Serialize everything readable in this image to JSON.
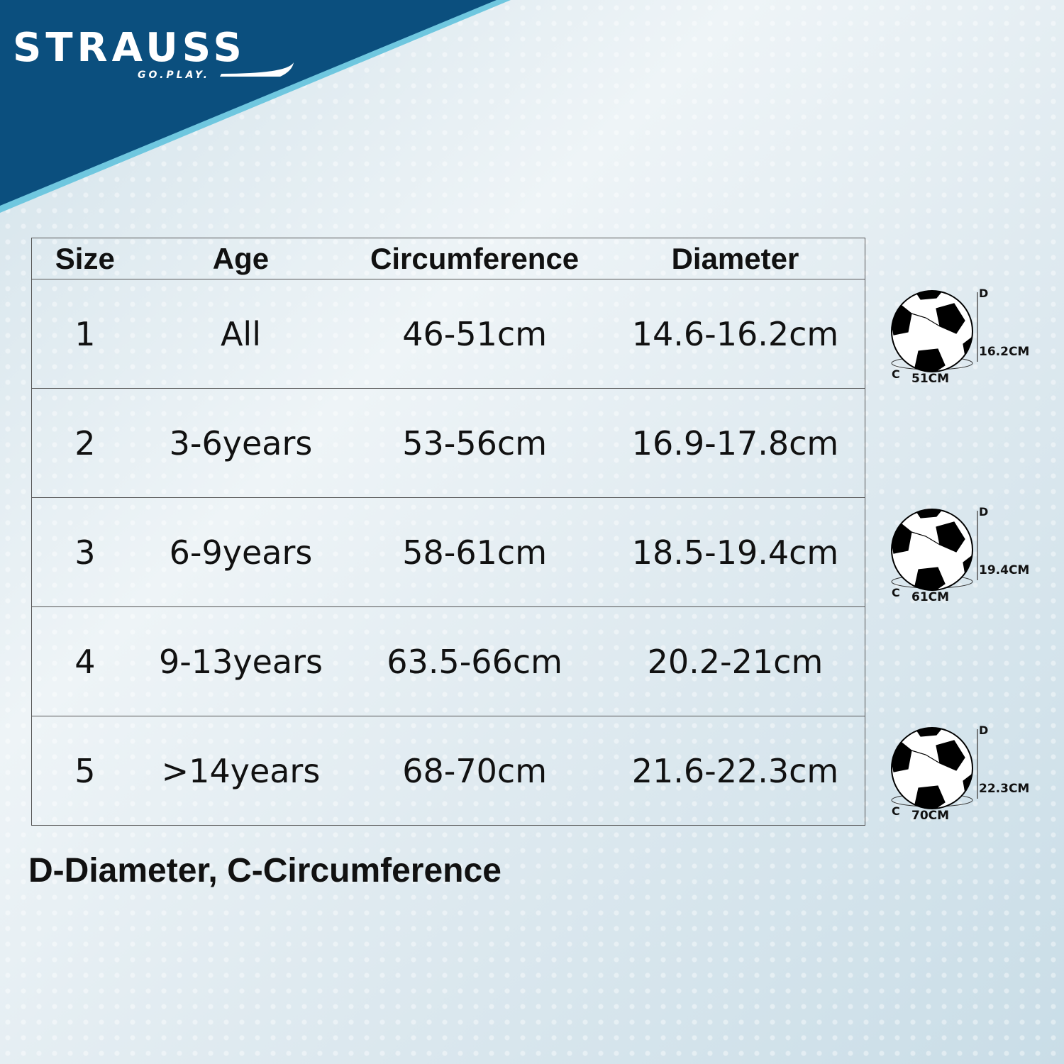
{
  "brand": {
    "name": "STRAUSS",
    "tagline": "GO.PLAY.",
    "colors": {
      "banner": "#0b4f7e",
      "accent": "#6fc7df"
    }
  },
  "table": {
    "headers": [
      "Size",
      "Age",
      "Circumference",
      "Diameter"
    ],
    "rows": [
      [
        "1",
        "All",
        "46-51cm",
        "14.6-16.2cm"
      ],
      [
        "2",
        "3-6years",
        "53-56cm",
        "16.9-17.8cm"
      ],
      [
        "3",
        "6-9years",
        "58-61cm",
        "18.5-19.4cm"
      ],
      [
        "4",
        "9-13years",
        "63.5-66cm",
        "20.2-21cm"
      ],
      [
        "5",
        ">14years",
        "68-70cm",
        "21.6-22.3cm"
      ]
    ]
  },
  "legend": "D-Diameter, C-Circumference",
  "balls": [
    {
      "d_label": "D",
      "diameter": "16.2CM",
      "c_label": "C",
      "circumference": "51CM",
      "icon": "soccer-ball-icon"
    },
    {
      "d_label": "D",
      "diameter": "19.4CM",
      "c_label": "C",
      "circumference": "61CM",
      "icon": "soccer-ball-icon"
    },
    {
      "d_label": "D",
      "diameter": "22.3CM",
      "c_label": "C",
      "circumference": "70CM",
      "icon": "soccer-ball-icon"
    }
  ]
}
